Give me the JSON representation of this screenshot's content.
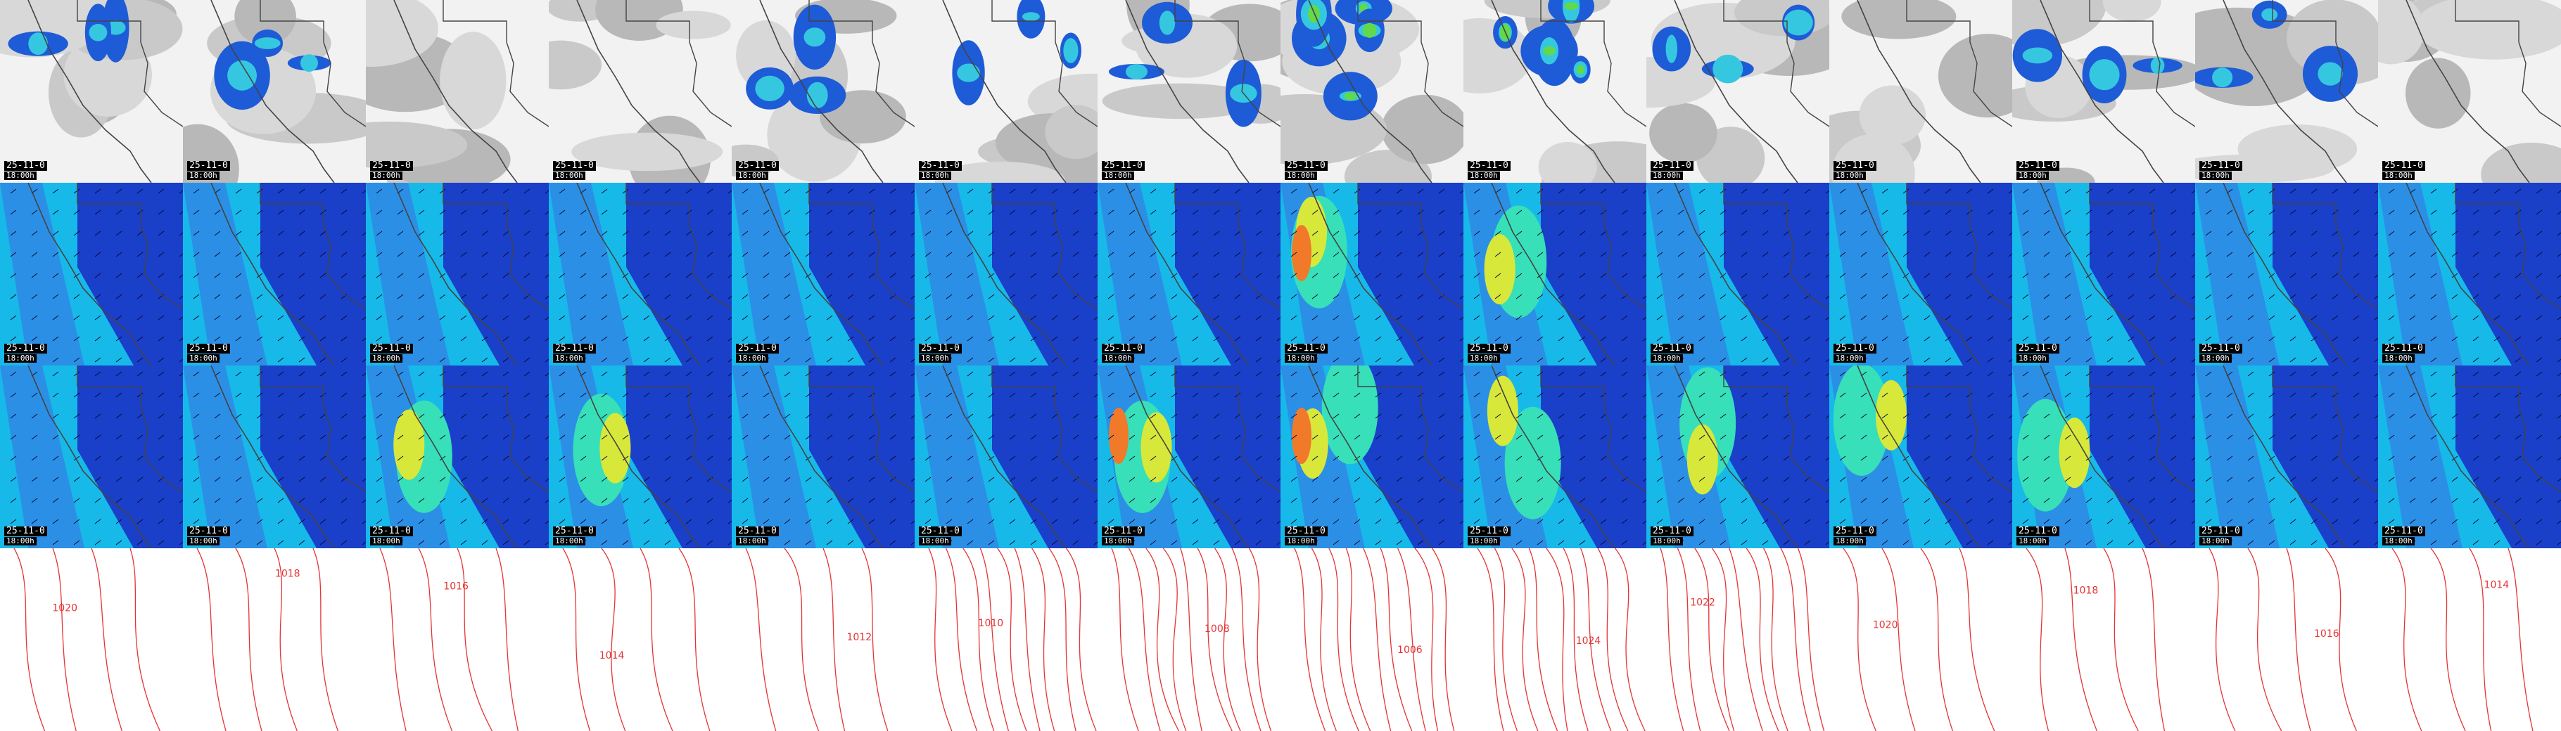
{
  "rows": [
    {
      "name": "precipitation",
      "style": "precip"
    },
    {
      "name": "wind-upper",
      "style": "wind"
    },
    {
      "name": "wind-lower",
      "style": "wind"
    },
    {
      "name": "pressure",
      "style": "pressure"
    }
  ],
  "columns": 14,
  "tile_labels": {
    "date_prefix": "25-11-0",
    "forecast_hour": "18:00h"
  },
  "pressure_contour_labels": [
    "1020",
    "1018",
    "1016",
    "1014",
    "1012",
    "1010",
    "1008",
    "1006",
    "1024",
    "1022"
  ],
  "colors": {
    "coastline": "#444444",
    "pressure_contour": "#e53333",
    "label_bg": "#000000",
    "label_text": "#ffffff"
  }
}
